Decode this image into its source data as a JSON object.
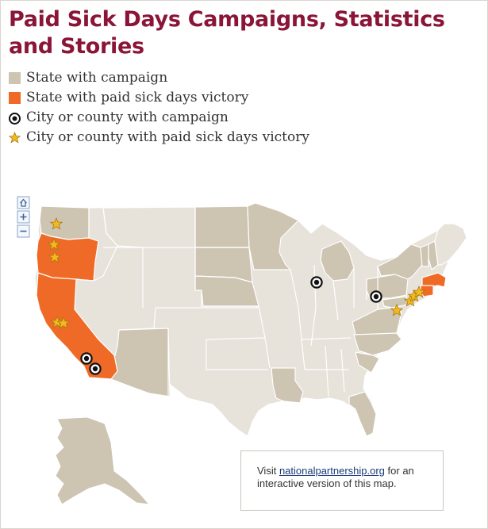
{
  "title": "Paid Sick Days Campaigns, Statistics and Stories",
  "legend": [
    {
      "label": "State with campaign",
      "icon": "campaign-state-swatch"
    },
    {
      "label": "State with paid sick days victory",
      "icon": "victory-state-swatch"
    },
    {
      "label": "City or county with campaign",
      "icon": "target-icon"
    },
    {
      "label": "City or county with paid sick days victory",
      "icon": "star-icon"
    }
  ],
  "colors": {
    "title": "#8a1538",
    "campaign_state": "#cdc4b2",
    "victory_state": "#ef6a26",
    "other_state": "#e7e2da",
    "border": "#ffffff"
  },
  "map_controls": {
    "home": "⌂",
    "zoom_in": "+",
    "zoom_out": "−"
  },
  "note": {
    "prefix": "Visit ",
    "link": "nationalpartnership.org",
    "suffix": " for an interactive version of this map."
  }
}
